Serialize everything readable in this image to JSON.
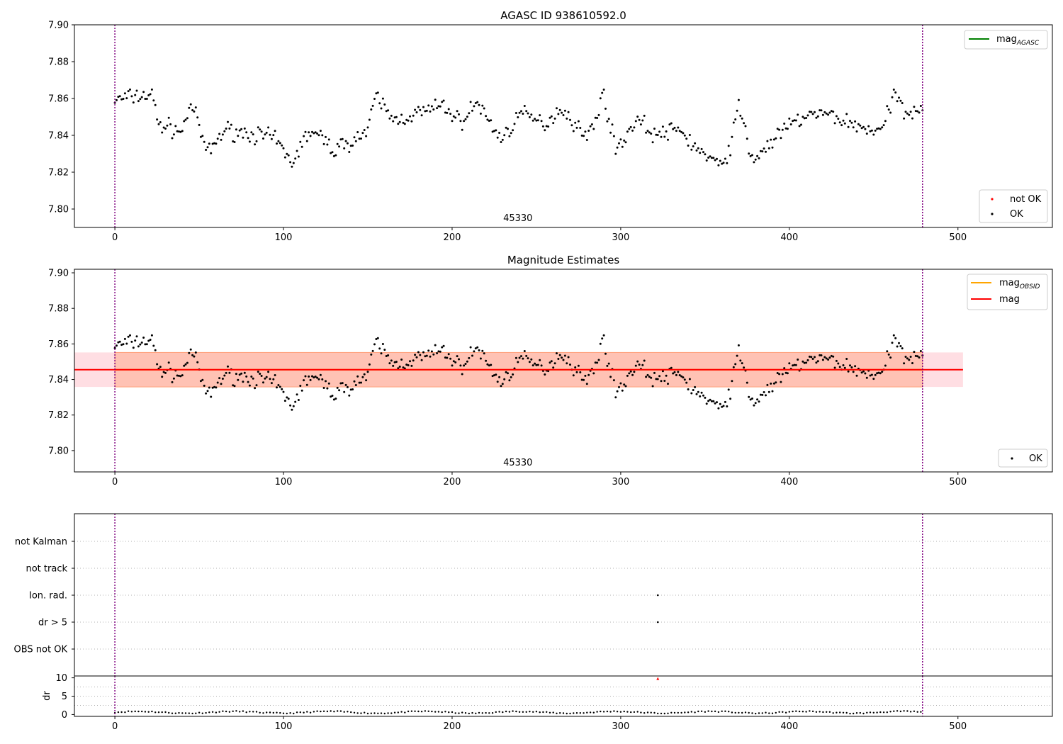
{
  "chart_data": [
    {
      "id": "agasc",
      "type": "scatter",
      "title": "AGASC ID 938610592.0",
      "xlim": [
        -24,
        556
      ],
      "ylim": [
        7.79,
        7.9
      ],
      "x_ticks": [
        0,
        100,
        200,
        300,
        400,
        500
      ],
      "y_ticks": [
        7.8,
        7.82,
        7.84,
        7.86,
        7.88,
        7.9
      ],
      "y_tick_labels": [
        "7.80",
        "7.82",
        "7.84",
        "7.86",
        "7.88",
        "7.90"
      ],
      "obsid_label": "45330",
      "obsid_label_x": 239,
      "vlines": [
        0,
        479
      ],
      "legend_lines": [
        {
          "name": "mag",
          "sub": "AGASC",
          "color": "#008000"
        }
      ],
      "legend_markers": [
        {
          "name": "not OK",
          "color": "#ff0000"
        },
        {
          "name": "OK",
          "color": "#000000"
        }
      ],
      "grid": false,
      "series": [
        {
          "name": "OK",
          "color": "#000000",
          "x_start": 0,
          "x_end": 479
        }
      ]
    },
    {
      "id": "estimates",
      "type": "scatter",
      "title": "Magnitude Estimates",
      "xlim": [
        -24,
        556
      ],
      "ylim": [
        7.788,
        7.902
      ],
      "x_ticks": [
        0,
        100,
        200,
        300,
        400,
        500
      ],
      "y_ticks": [
        7.8,
        7.82,
        7.84,
        7.86,
        7.88,
        7.9
      ],
      "y_tick_labels": [
        "7.80",
        "7.82",
        "7.84",
        "7.86",
        "7.88",
        "7.90"
      ],
      "obsid_label": "45330",
      "obsid_label_x": 239,
      "vlines": [
        0,
        479
      ],
      "mag": 7.8455,
      "mag_band": [
        7.8358,
        7.8552
      ],
      "band_x": [
        -24,
        503
      ],
      "legend_lines": [
        {
          "name": "mag",
          "sub": "OBSID",
          "color": "#ffa500"
        },
        {
          "name": "mag",
          "sub": "",
          "color": "#ff0000"
        }
      ],
      "legend_markers": [
        {
          "name": "OK",
          "color": "#000000"
        }
      ],
      "grid": false,
      "series": [
        {
          "name": "OK",
          "color": "#000000",
          "x_start": 0,
          "x_end": 479
        }
      ]
    },
    {
      "id": "flags",
      "type": "scatter",
      "xlim": [
        -24,
        556
      ],
      "categories": [
        "not Kalman",
        "not track",
        "Ion. rad.",
        "dr > 5",
        "OBS not OK"
      ],
      "flag_points": [
        {
          "category": "Ion. rad.",
          "x": 322
        },
        {
          "category": "dr > 5",
          "x": 322
        }
      ],
      "vlines": [
        0,
        479
      ],
      "grid": true
    },
    {
      "id": "dr",
      "type": "scatter",
      "ylabel": "dr",
      "xlim": [
        -24,
        556
      ],
      "ylim": [
        -0.5,
        10.5
      ],
      "x_ticks": [
        0,
        100,
        200,
        300,
        400,
        500
      ],
      "y_ticks": [
        0,
        5,
        10
      ],
      "vlines": [
        0,
        479
      ],
      "outlier": {
        "x": 322,
        "y": 9.8,
        "color": "#ff0000"
      },
      "series": [
        {
          "name": "dr",
          "color": "#000000",
          "x_start": 0,
          "x_end": 479
        }
      ]
    }
  ]
}
